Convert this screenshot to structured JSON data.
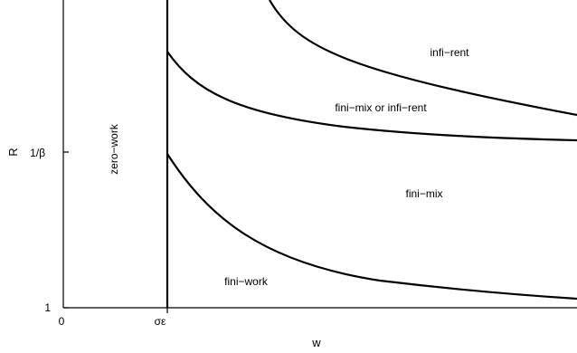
{
  "diagram": {
    "axes": {
      "x_label": "w",
      "y_label": "R",
      "x_ticks": {
        "origin": "0",
        "threshold": "σε"
      },
      "y_ticks": {
        "upper": "1/β",
        "lower": "1"
      }
    },
    "regions": {
      "zero_work": "zero−work",
      "infi_rent": "infi−rent",
      "fini_mix_or_infi_rent": "fini−mix or infi−rent",
      "fini_mix": "fini−mix",
      "fini_work": "fini−work"
    }
  }
}
